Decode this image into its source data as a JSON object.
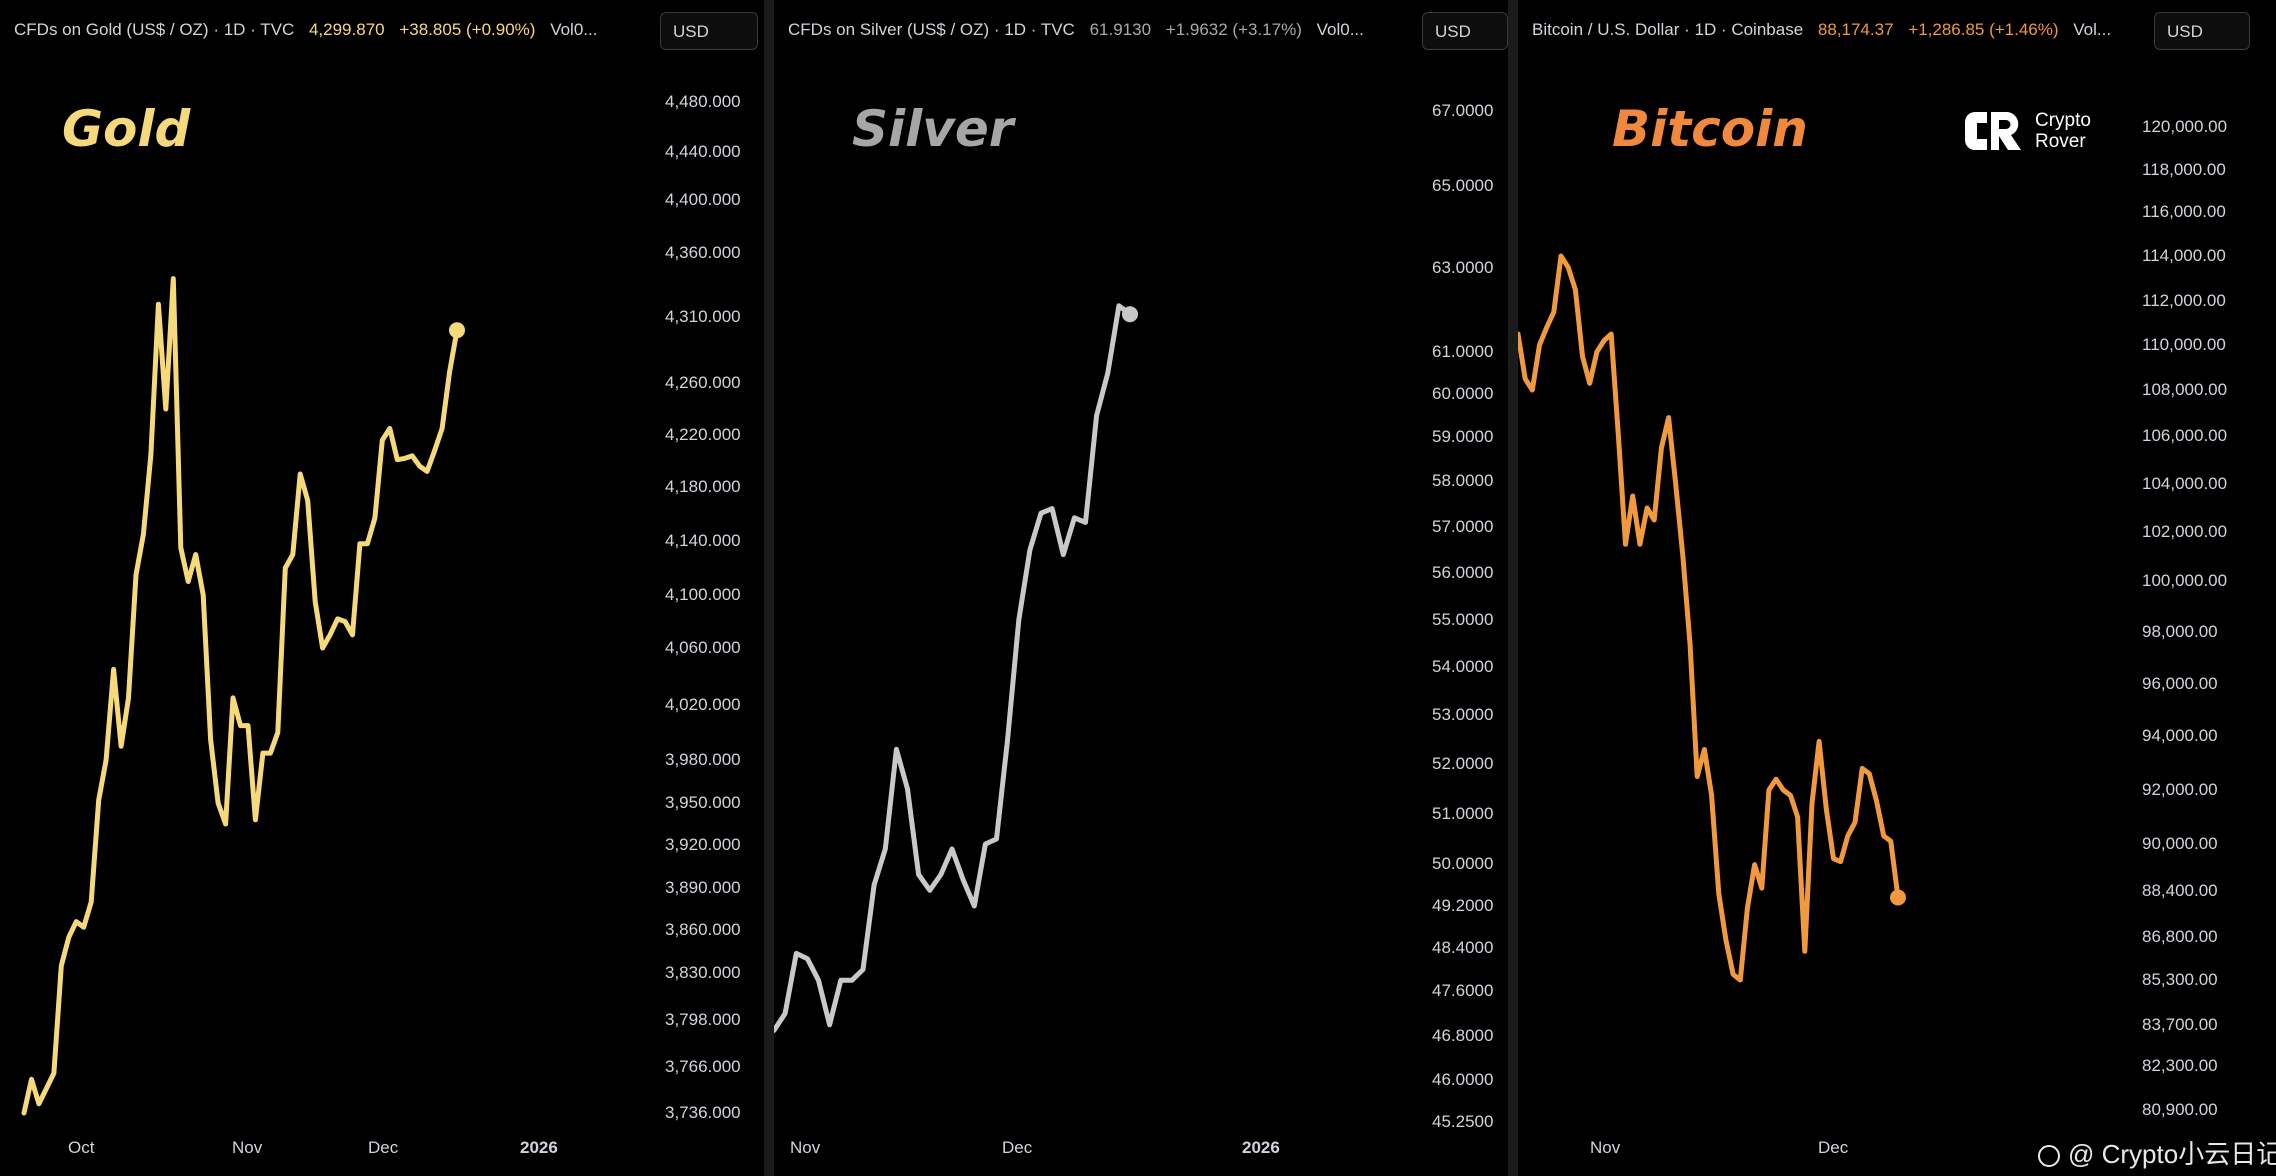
{
  "watermark": {
    "text": "@ Crypto小云日记"
  },
  "logo": {
    "line1": "Crypto",
    "line2": "Rover",
    "icon": "crypto-rover-logo"
  },
  "colors": {
    "gold": "#f6d97a",
    "silver": "#c9c9c9",
    "bitcoin": "#f0993e",
    "background": "#000000"
  },
  "panels": [
    {
      "id": "gold",
      "header": {
        "title": "CFDs on Gold (US$ / OZ) · 1D · TVC",
        "value": "4,299.870",
        "change": "+38.805 (+0.90%)",
        "vol": "Vol0..."
      },
      "currency": "USD",
      "label": "Gold"
    },
    {
      "id": "silver",
      "header": {
        "title": "CFDs on Silver (US$ / OZ) · 1D · TVC",
        "value": "61.9130",
        "change": "+1.9632 (+3.17%)",
        "vol": "Vol0..."
      },
      "currency": "USD",
      "label": "Silver"
    },
    {
      "id": "bitcoin",
      "header": {
        "title": "Bitcoin / U.S. Dollar · 1D · Coinbase",
        "value": "88,174.37",
        "change": "+1,286.85 (+1.46%)",
        "vol": "Vol..."
      },
      "currency": "USD",
      "label": "Bitcoin"
    }
  ],
  "chart_data": [
    {
      "type": "line",
      "title": "Gold",
      "series": [
        {
          "name": "CFDs on Gold (US$ / OZ)",
          "values": [
            3736,
            3758,
            3742,
            3752,
            3762,
            3835,
            3855,
            3866,
            3862,
            3880,
            3952,
            3980,
            4045,
            3990,
            4025,
            4115,
            4145,
            4205,
            4320,
            4240,
            4340,
            4135,
            4110,
            4130,
            4100,
            3995,
            3950,
            3935,
            4025,
            4005,
            4005,
            3938,
            3985,
            3985,
            4000,
            4120,
            4130,
            4190,
            4170,
            4095,
            4060,
            4070,
            4082,
            4080,
            4070,
            4138,
            4138,
            4157,
            4216,
            4225,
            4201,
            4202,
            4204,
            4196,
            4192,
            4208,
            4225,
            4268,
            4300
          ]
        }
      ],
      "y_ticks": [
        "4,480.000",
        "4,440.000",
        "4,400.000",
        "4,360.000",
        "4,310.000",
        "4,260.000",
        "4,220.000",
        "4,180.000",
        "4,140.000",
        "4,100.000",
        "4,060.000",
        "4,020.000",
        "3,980.000",
        "3,950.000",
        "3,920.000",
        "3,890.000",
        "3,860.000",
        "3,830.000",
        "3,798.000",
        "3,766.000",
        "3,736.000"
      ],
      "x_ticks": [
        "Oct",
        "Nov",
        "Dec",
        "2026"
      ],
      "log_scale": true
    },
    {
      "type": "line",
      "title": "Silver",
      "series": [
        {
          "name": "CFDs on Silver (US$ / OZ)",
          "values": [
            46.9,
            47.2,
            48.3,
            48.2,
            47.8,
            47.0,
            47.8,
            47.8,
            48.0,
            49.6,
            50.3,
            52.3,
            51.5,
            49.8,
            49.5,
            49.8,
            50.3,
            49.7,
            49.2,
            50.4,
            50.5,
            52.5,
            55.0,
            56.5,
            57.3,
            57.4,
            56.4,
            57.2,
            57.1,
            59.5,
            60.5,
            62.1,
            61.9
          ]
        }
      ],
      "y_ticks": [
        "67.0000",
        "65.0000",
        "63.0000",
        "61.0000",
        "60.0000",
        "59.0000",
        "58.0000",
        "57.0000",
        "56.0000",
        "55.0000",
        "54.0000",
        "53.0000",
        "52.0000",
        "51.0000",
        "50.0000",
        "49.2000",
        "48.4000",
        "47.6000",
        "46.8000",
        "46.0000",
        "45.2500"
      ],
      "x_ticks": [
        "Nov",
        "Dec",
        "2026"
      ],
      "log_scale": true
    },
    {
      "type": "line",
      "title": "Bitcoin",
      "series": [
        {
          "name": "Bitcoin / U.S. Dollar",
          "values": [
            110500,
            108500,
            108000,
            110000,
            110800,
            111500,
            114000,
            113500,
            112500,
            109500,
            108300,
            109700,
            110200,
            110500,
            106000,
            101500,
            103500,
            101500,
            103000,
            102500,
            105500,
            106800,
            104000,
            101000,
            97500,
            92500,
            93500,
            91800,
            88300,
            86700,
            85500,
            85300,
            87800,
            89300,
            88500,
            92000,
            92400,
            92000,
            91800,
            91000,
            86300,
            91500,
            93800,
            91300,
            89500,
            89400,
            90300,
            90800,
            92800,
            92600,
            91600,
            90300,
            90100,
            88174
          ]
        }
      ],
      "y_ticks": [
        "120,000.00",
        "118,000.00",
        "116,000.00",
        "114,000.00",
        "112,000.00",
        "110,000.00",
        "108,000.00",
        "106,000.00",
        "104,000.00",
        "102,000.00",
        "100,000.00",
        "98,000.00",
        "96,000.00",
        "94,000.00",
        "92,000.00",
        "90,000.00",
        "88,400.00",
        "86,800.00",
        "85,300.00",
        "83,700.00",
        "82,300.00",
        "80,900.00"
      ],
      "x_ticks": [
        "Nov",
        "Dec"
      ],
      "log_scale": true
    }
  ]
}
